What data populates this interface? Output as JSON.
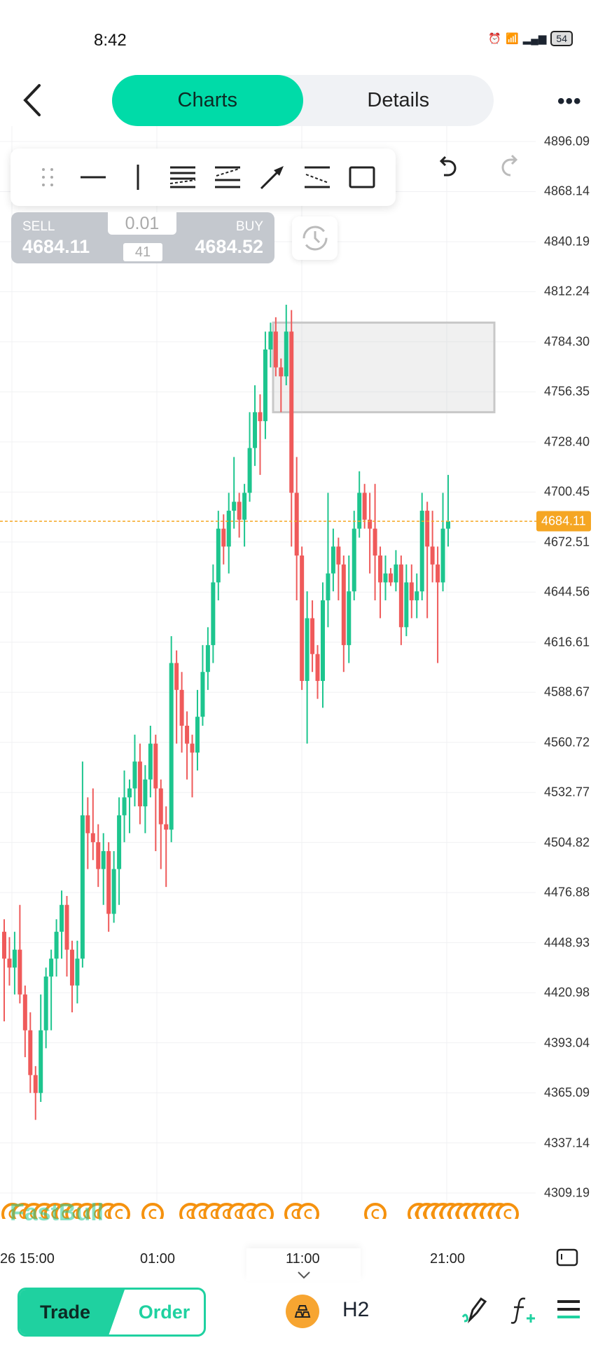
{
  "status_bar": {
    "time": "8:42",
    "battery": "54"
  },
  "header": {
    "tabs": [
      {
        "label": "Charts",
        "active": true
      },
      {
        "label": "Details",
        "active": false
      }
    ]
  },
  "toolbar": {
    "tools": [
      "drag-handle-icon",
      "horizontal-line-icon",
      "vertical-line-icon",
      "parallel-channel-icon",
      "trend-channel-icon",
      "arrow-icon",
      "fib-lines-icon",
      "rectangle-icon"
    ]
  },
  "trade_widget": {
    "sell_label": "SELL",
    "sell_price": "4684.11",
    "buy_label": "BUY",
    "buy_price": "4684.52",
    "lot": "0.01",
    "spread": "41"
  },
  "watermark": "FastBull",
  "bottom": {
    "trade": "Trade",
    "order": "Order",
    "timeframe": "H2"
  },
  "colors": {
    "accent": "#00dba8",
    "up": "#1dc58e",
    "down": "#ef5a5a",
    "price_line": "#f5a623",
    "event": "#f5920f"
  },
  "chart_data": {
    "type": "candlestick",
    "price_ticks": [
      "4896.09",
      "4868.14",
      "4840.19",
      "4812.24",
      "4784.30",
      "4756.35",
      "4728.40",
      "4700.45",
      "4672.51",
      "4644.56",
      "4616.61",
      "4588.67",
      "4560.72",
      "4532.77",
      "4504.82",
      "4476.88",
      "4448.93",
      "4420.98",
      "4393.04",
      "4365.09",
      "4337.14",
      "4309.19"
    ],
    "ylim": [
      4309.19,
      4896.09
    ],
    "time_labels": [
      "26 15:00",
      "01:00",
      "11:00",
      "21:00"
    ],
    "current_price": "4684.11",
    "zone": {
      "top": 4795,
      "bottom": 4745
    },
    "event_count": 34,
    "candles": [
      [
        4455,
        4462,
        4405,
        4440
      ],
      [
        4440,
        4452,
        4425,
        4435
      ],
      [
        4435,
        4455,
        4420,
        4445
      ],
      [
        4445,
        4470,
        4415,
        4420
      ],
      [
        4420,
        4425,
        4385,
        4400
      ],
      [
        4400,
        4410,
        4365,
        4375
      ],
      [
        4375,
        4380,
        4350,
        4365
      ],
      [
        4365,
        4420,
        4360,
        4400
      ],
      [
        4400,
        4435,
        4390,
        4430
      ],
      [
        4430,
        4445,
        4400,
        4440
      ],
      [
        4440,
        4462,
        4430,
        4455
      ],
      [
        4455,
        4478,
        4440,
        4470
      ],
      [
        4470,
        4475,
        4430,
        4445
      ],
      [
        4445,
        4450,
        4410,
        4425
      ],
      [
        4425,
        4450,
        4415,
        4440
      ],
      [
        4440,
        4550,
        4435,
        4520
      ],
      [
        4520,
        4530,
        4490,
        4510
      ],
      [
        4510,
        4535,
        4495,
        4505
      ],
      [
        4505,
        4515,
        4480,
        4490
      ],
      [
        4490,
        4510,
        4470,
        4500
      ],
      [
        4500,
        4505,
        4455,
        4465
      ],
      [
        4465,
        4500,
        4460,
        4490
      ],
      [
        4490,
        4530,
        4470,
        4520
      ],
      [
        4520,
        4545,
        4505,
        4530
      ],
      [
        4530,
        4540,
        4510,
        4535
      ],
      [
        4535,
        4565,
        4525,
        4550
      ],
      [
        4550,
        4560,
        4515,
        4525
      ],
      [
        4525,
        4548,
        4510,
        4540
      ],
      [
        4540,
        4570,
        4530,
        4560
      ],
      [
        4560,
        4565,
        4500,
        4535
      ],
      [
        4535,
        4540,
        4490,
        4515
      ],
      [
        4515,
        4525,
        4480,
        4512
      ],
      [
        4512,
        4620,
        4505,
        4605
      ],
      [
        4605,
        4612,
        4560,
        4590
      ],
      [
        4590,
        4600,
        4555,
        4570
      ],
      [
        4570,
        4578,
        4540,
        4560
      ],
      [
        4560,
        4565,
        4530,
        4555
      ],
      [
        4555,
        4590,
        4545,
        4575
      ],
      [
        4575,
        4615,
        4570,
        4600
      ],
      [
        4600,
        4625,
        4590,
        4615
      ],
      [
        4615,
        4660,
        4605,
        4650
      ],
      [
        4650,
        4690,
        4640,
        4680
      ],
      [
        4680,
        4688,
        4660,
        4670
      ],
      [
        4670,
        4700,
        4655,
        4690
      ],
      [
        4690,
        4720,
        4680,
        4695
      ],
      [
        4695,
        4700,
        4675,
        4685
      ],
      [
        4685,
        4705,
        4670,
        4700
      ],
      [
        4700,
        4745,
        4695,
        4725
      ],
      [
        4725,
        4760,
        4715,
        4745
      ],
      [
        4745,
        4755,
        4710,
        4740
      ],
      [
        4740,
        4790,
        4730,
        4780
      ],
      [
        4780,
        4795,
        4770,
        4790
      ],
      [
        4790,
        4798,
        4765,
        4770
      ],
      [
        4770,
        4775,
        4745,
        4765
      ],
      [
        4765,
        4805,
        4760,
        4790
      ],
      [
        4790,
        4802,
        4670,
        4700
      ],
      [
        4700,
        4720,
        4640,
        4665
      ],
      [
        4665,
        4670,
        4590,
        4595
      ],
      [
        4595,
        4645,
        4560,
        4630
      ],
      [
        4630,
        4640,
        4600,
        4610
      ],
      [
        4610,
        4615,
        4585,
        4595
      ],
      [
        4595,
        4650,
        4580,
        4640
      ],
      [
        4640,
        4700,
        4625,
        4655
      ],
      [
        4655,
        4680,
        4645,
        4670
      ],
      [
        4670,
        4675,
        4640,
        4660
      ],
      [
        4660,
        4665,
        4600,
        4615
      ],
      [
        4615,
        4665,
        4605,
        4645
      ],
      [
        4645,
        4690,
        4640,
        4680
      ],
      [
        4680,
        4712,
        4675,
        4700
      ],
      [
        4700,
        4705,
        4680,
        4685
      ],
      [
        4685,
        4700,
        4655,
        4680
      ],
      [
        4680,
        4705,
        4640,
        4665
      ],
      [
        4665,
        4670,
        4630,
        4650
      ],
      [
        4650,
        4665,
        4640,
        4655
      ],
      [
        4655,
        4658,
        4648,
        4650
      ],
      [
        4650,
        4668,
        4645,
        4660
      ],
      [
        4660,
        4665,
        4615,
        4625
      ],
      [
        4625,
        4660,
        4620,
        4650
      ],
      [
        4650,
        4660,
        4630,
        4640
      ],
      [
        4640,
        4655,
        4630,
        4645
      ],
      [
        4645,
        4700,
        4640,
        4690
      ],
      [
        4690,
        4695,
        4630,
        4670
      ],
      [
        4670,
        4690,
        4650,
        4660
      ],
      [
        4660,
        4670,
        4605,
        4650
      ],
      [
        4650,
        4700,
        4645,
        4680
      ],
      [
        4680,
        4710,
        4670,
        4684.11
      ]
    ]
  }
}
